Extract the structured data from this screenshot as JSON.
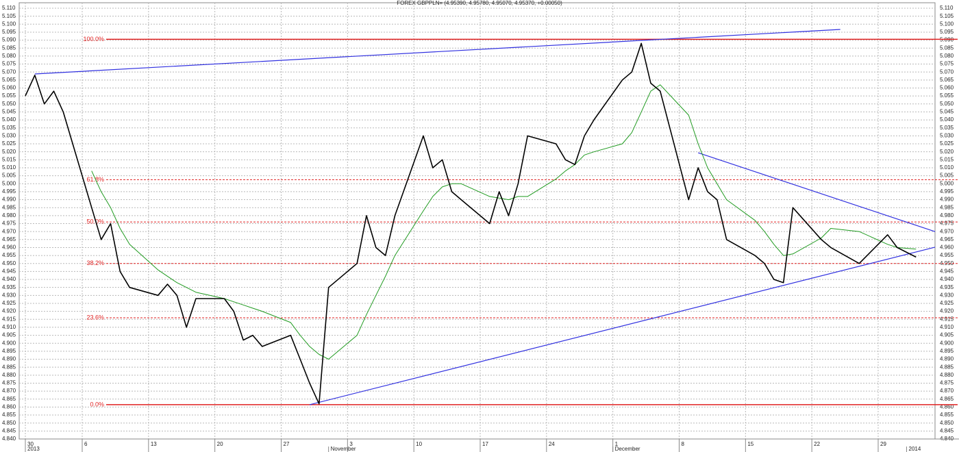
{
  "chart_data": {
    "type": "line",
    "title": "FOREX GBPPLN= (4.95390, 4.95780, 4.95070, 4.95370, +0.00050)",
    "x": [
      "2013-09-30",
      "2013-10-01",
      "2013-10-02",
      "2013-10-03",
      "2013-10-04",
      "2013-10-07",
      "2013-10-08",
      "2013-10-09",
      "2013-10-10",
      "2013-10-11",
      "2013-10-14",
      "2013-10-15",
      "2013-10-16",
      "2013-10-17",
      "2013-10-18",
      "2013-10-21",
      "2013-10-22",
      "2013-10-23",
      "2013-10-24",
      "2013-10-25",
      "2013-10-28",
      "2013-10-29",
      "2013-10-30",
      "2013-10-31",
      "2013-11-01",
      "2013-11-04",
      "2013-11-05",
      "2013-11-06",
      "2013-11-07",
      "2013-11-08",
      "2013-11-11",
      "2013-11-12",
      "2013-11-13",
      "2013-11-14",
      "2013-11-15",
      "2013-11-18",
      "2013-11-19",
      "2013-11-20",
      "2013-11-21",
      "2013-11-22",
      "2013-11-25",
      "2013-11-26",
      "2013-11-27",
      "2013-11-28",
      "2013-11-29",
      "2013-12-02",
      "2013-12-03",
      "2013-12-04",
      "2013-12-05",
      "2013-12-06",
      "2013-12-09",
      "2013-12-10",
      "2013-12-11",
      "2013-12-12",
      "2013-12-13",
      "2013-12-16",
      "2013-12-17",
      "2013-12-18",
      "2013-12-19",
      "2013-12-20",
      "2013-12-23",
      "2013-12-24",
      "2013-12-27",
      "2013-12-30",
      "2013-12-31",
      "2014-01-02"
    ],
    "series": [
      {
        "color": "#000000",
        "values": [
          5.055,
          5.068,
          5.05,
          5.058,
          5.045,
          4.985,
          4.965,
          4.975,
          4.945,
          4.935,
          4.93,
          4.937,
          4.93,
          4.91,
          4.928,
          4.928,
          4.92,
          4.902,
          4.905,
          4.898,
          4.905,
          4.89,
          4.875,
          4.862,
          4.935,
          4.95,
          4.98,
          4.96,
          4.955,
          4.98,
          5.03,
          5.01,
          5.015,
          4.995,
          4.99,
          4.975,
          4.995,
          4.98,
          5,
          5.03,
          5.025,
          5.015,
          5.012,
          5.03,
          5.04,
          5.065,
          5.07,
          5.088,
          5.063,
          5.058,
          4.99,
          5.01,
          4.995,
          4.99,
          4.965,
          4.955,
          4.95,
          4.94,
          4.938,
          4.985,
          4.965,
          4.96,
          4.95,
          4.968,
          4.96,
          4.954
        ]
      },
      {
        "color": "#1f9a1f",
        "values": [
          null,
          null,
          null,
          null,
          null,
          5.008,
          4.995,
          4.985,
          4.972,
          4.962,
          4.946,
          4.942,
          4.938,
          4.935,
          4.932,
          4.928,
          4.926,
          4.924,
          4.922,
          4.92,
          4.913,
          4.905,
          4.898,
          4.893,
          4.89,
          4.905,
          4.918,
          4.93,
          4.942,
          4.955,
          4.983,
          4.992,
          4.998,
          5,
          5,
          4.992,
          4.991,
          4.99,
          4.992,
          4.992,
          5.003,
          5.008,
          5.012,
          5.018,
          5.02,
          5.025,
          5.032,
          5.045,
          5.058,
          5.062,
          5.043,
          5.025,
          5.01,
          5,
          4.99,
          4.977,
          4.97,
          4.962,
          4.955,
          4.956,
          4.966,
          4.972,
          4.97,
          4.962,
          4.96,
          4.959
        ]
      }
    ],
    "trendlines": [
      {
        "color": "#3030e0",
        "x": [
          "2013-10-01",
          "2013-12-25"
        ],
        "values": [
          5.0688,
          5.0967
        ]
      },
      {
        "color": "#3030e0",
        "x": [
          "2013-10-30",
          "2014-01-04"
        ],
        "values": [
          4.8615,
          4.9602
        ]
      },
      {
        "color": "#3030e0",
        "x": [
          "2013-12-10",
          "2014-01-04"
        ],
        "values": [
          5.0194,
          4.97
        ]
      }
    ],
    "levels": [
      {
        "label": "100.0%",
        "value": 5.0905,
        "style": "solid"
      },
      {
        "label": "61.8%",
        "value": 5.0025,
        "style": "dashed"
      },
      {
        "label": "50.0%",
        "value": 4.976,
        "style": "dashed"
      },
      {
        "label": "38.2%",
        "value": 4.95,
        "style": "dashed"
      },
      {
        "label": "23.6%",
        "value": 4.916,
        "style": "dashed"
      },
      {
        "label": "0.0%",
        "value": 4.8615,
        "style": "solid"
      }
    ],
    "level_color": "#e02020",
    "xlim": [
      "2013-09-30",
      "2014-01-04"
    ],
    "xticks": [
      {
        "value": "2013-09-30",
        "label": "30"
      },
      {
        "value": "2013-10-06",
        "label": "6"
      },
      {
        "value": "2013-10-13",
        "label": "13"
      },
      {
        "value": "2013-10-20",
        "label": "20"
      },
      {
        "value": "2013-10-27",
        "label": "27"
      },
      {
        "value": "2013-11-03",
        "label": "3"
      },
      {
        "value": "2013-11-10",
        "label": "10"
      },
      {
        "value": "2013-11-17",
        "label": "17"
      },
      {
        "value": "2013-11-24",
        "label": "24"
      },
      {
        "value": "2013-12-01",
        "label": "1"
      },
      {
        "value": "2013-12-08",
        "label": "8"
      },
      {
        "value": "2013-12-15",
        "label": "15"
      },
      {
        "value": "2013-12-22",
        "label": "22"
      },
      {
        "value": "2013-12-29",
        "label": "29"
      }
    ],
    "x_period_ticks": [
      {
        "value": "2013-09-30",
        "label": "2013"
      },
      {
        "value": "2013-11-01",
        "label": "November"
      },
      {
        "value": "2013-12-01",
        "label": "December"
      },
      {
        "value": "2014-01-01",
        "label": "2014"
      }
    ],
    "ylim": [
      4.84,
      5.11
    ],
    "yticks": [
      {
        "value": 4.84,
        "label": "4.840"
      },
      4.845,
      {
        "value": 4.85,
        "label": "4.850"
      },
      4.855,
      {
        "value": 4.86,
        "label": "4.860"
      },
      4.865,
      {
        "value": 4.87,
        "label": "4.870"
      },
      4.875,
      {
        "value": 4.88,
        "label": "4.880"
      },
      4.885,
      {
        "value": 4.89,
        "label": "4.890"
      },
      4.895,
      {
        "value": 4.9,
        "label": "4.900"
      },
      4.905,
      {
        "value": 4.91,
        "label": "4.910"
      },
      4.915,
      {
        "value": 4.92,
        "label": "4.920"
      },
      4.925,
      {
        "value": 4.93,
        "label": "4.930"
      },
      4.935,
      {
        "value": 4.94,
        "label": "4.940"
      },
      4.945,
      {
        "value": 4.95,
        "label": "4.950"
      },
      4.955,
      {
        "value": 4.96,
        "label": "4.960"
      },
      4.965,
      {
        "value": 4.97,
        "label": "4.970"
      },
      4.975,
      {
        "value": 4.98,
        "label": "4.980"
      },
      4.985,
      {
        "value": 4.99,
        "label": "4.990"
      },
      4.995,
      {
        "value": 5,
        "label": "5.000"
      },
      5.005,
      {
        "value": 5.01,
        "label": "5.010"
      },
      5.015,
      {
        "value": 5.02,
        "label": "5.020"
      },
      5.025,
      {
        "value": 5.03,
        "label": "5.030"
      },
      5.035,
      {
        "value": 5.04,
        "label": "5.040"
      },
      5.045,
      {
        "value": 5.05,
        "label": "5.050"
      },
      5.055,
      {
        "value": 5.06,
        "label": "5.060"
      },
      5.065,
      {
        "value": 5.07,
        "label": "5.070"
      },
      5.075,
      {
        "value": 5.08,
        "label": "5.080"
      },
      5.085,
      {
        "value": 5.09,
        "label": "5.090"
      },
      5.095,
      {
        "value": 5.1,
        "label": "5.100"
      },
      5.105,
      {
        "value": 5.11,
        "label": "5.110"
      }
    ],
    "grid": true
  }
}
